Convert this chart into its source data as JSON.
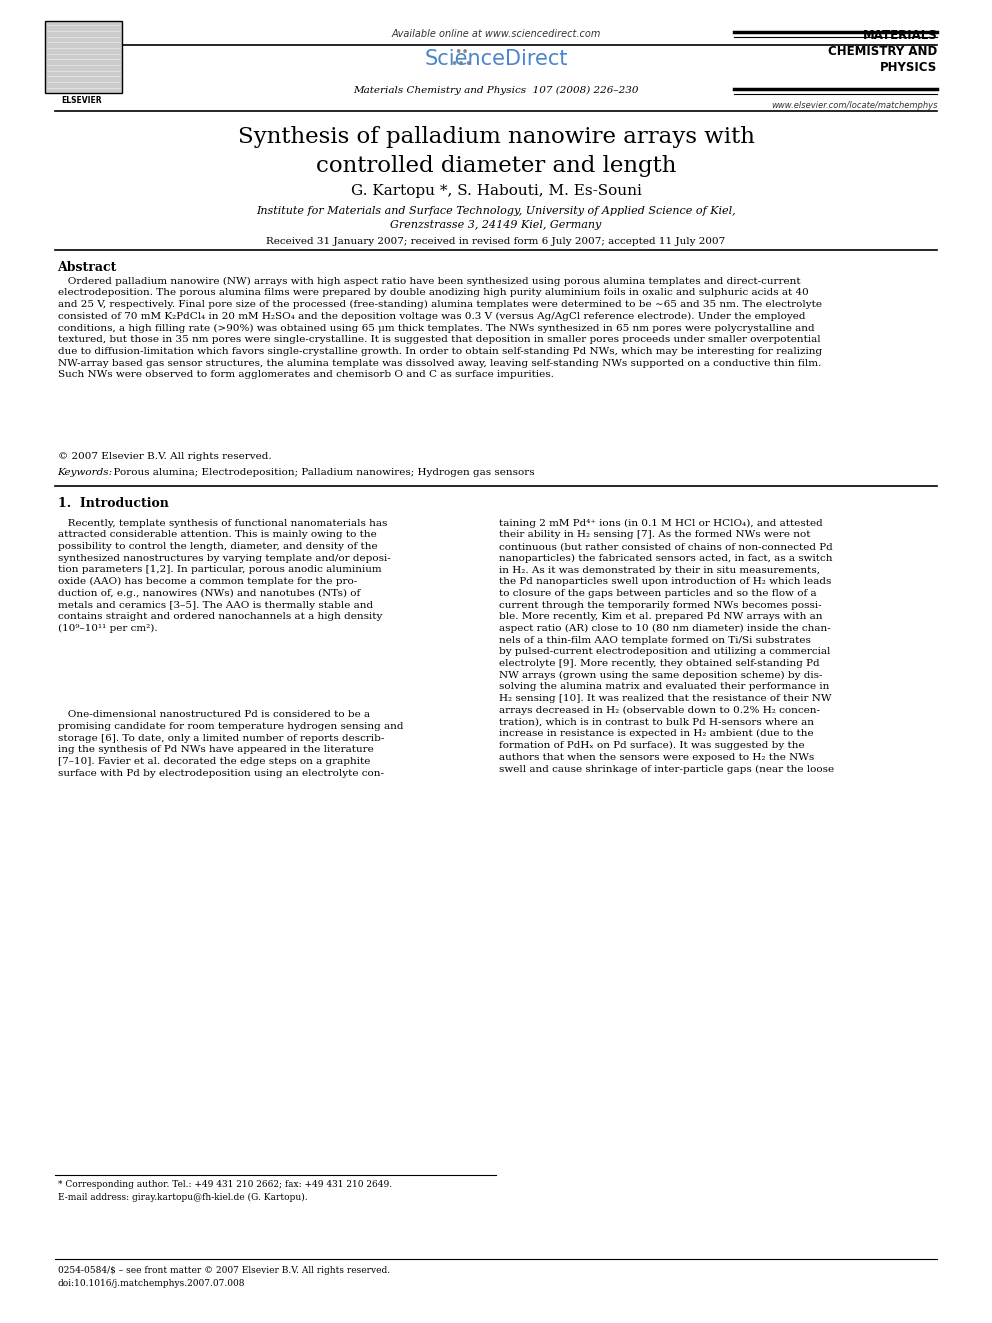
{
  "title": "Synthesis of palladium nanowire arrays with\ncontrolled diameter and length",
  "authors": "G. Kartopu *, S. Habouti, M. Es-Souni",
  "affiliation1": "Institute for Materials and Surface Technology, University of Applied Science of Kiel,",
  "affiliation2": "Grenzstrasse 3, 24149 Kiel, Germany",
  "received": "Received 31 January 2007; received in revised form 6 July 2007; accepted 11 July 2007",
  "journal_header": "Materials Chemistry and Physics  107 (2008) 226–230",
  "available_online": "Available online at www.sciencedirect.com",
  "sciencedirect": "ScienceDirect",
  "journal_name": "MATERIALS\nCHEMISTRY AND\nPHYSICS",
  "elsevier": "ELSEVIER",
  "journal_url": "www.elsevier.com/locate/matchemphys",
  "abstract_title": "Abstract",
  "abstract_text": "   Ordered palladium nanowire (NW) arrays with high aspect ratio have been synthesized using porous alumina templates and direct-current\nelectrodeposition. The porous alumina films were prepared by double anodizing high purity aluminium foils in oxalic and sulphuric acids at 40\nand 25 V, respectively. Final pore size of the processed (free-standing) alumina templates were determined to be ∼65 and 35 nm. The electrolyte\nconsisted of 70 mM K₂PdCl₄ in 20 mM H₂SO₄ and the deposition voltage was 0.3 V (versus Ag/AgCl reference electrode). Under the employed\nconditions, a high filling rate (>90%) was obtained using 65 μm thick templates. The NWs synthesized in 65 nm pores were polycrystalline and\ntextured, but those in 35 nm pores were single-crystalline. It is suggested that deposition in smaller pores proceeds under smaller overpotential\ndue to diffusion-limitation which favors single-crystalline growth. In order to obtain self-standing Pd NWs, which may be interesting for realizing\nNW-array based gas sensor structures, the alumina template was dissolved away, leaving self-standing NWs supported on a conductive thin film.\nSuch NWs were observed to form agglomerates and chemisorb O and C as surface impurities.",
  "copyright": "© 2007 Elsevier B.V. All rights reserved.",
  "keywords_label": "Keywords:",
  "keywords": "  Porous alumina; Electrodeposition; Palladium nanowires; Hydrogen gas sensors",
  "section1_title": "1.  Introduction",
  "intro_col1_para1": "   Recently, template synthesis of functional nanomaterials has\nattracted considerable attention. This is mainly owing to the\npossibility to control the length, diameter, and density of the\nsynthesized nanostructures by varying template and/or deposi-\ntion parameters [1,2]. In particular, porous anodic aluminium\noxide (AAO) has become a common template for the pro-\nduction of, e.g., nanowires (NWs) and nanotubes (NTs) of\nmetals and ceramics [3–5]. The AAO is thermally stable and\ncontains straight and ordered nanochannels at a high density\n(10⁹–10¹¹ per cm²).",
  "intro_col1_para2": "   One-dimensional nanostructured Pd is considered to be a\npromising candidate for room temperature hydrogen sensing and\nstorage [6]. To date, only a limited number of reports describ-\ning the synthesis of Pd NWs have appeared in the literature\n[7–10]. Favier et al. decorated the edge steps on a graphite\nsurface with Pd by electrodeposition using an electrolyte con-",
  "intro_col2": "taining 2 mM Pd⁴⁺ ions (in 0.1 M HCl or HClO₄), and attested\ntheir ability in H₂ sensing [7]. As the formed NWs were not\ncontinuous (but rather consisted of chains of non-connected Pd\nnanoparticles) the fabricated sensors acted, in fact, as a switch\nin H₂. As it was demonstrated by their in situ measurements,\nthe Pd nanoparticles swell upon introduction of H₂ which leads\nto closure of the gaps between particles and so the flow of a\ncurrent through the temporarily formed NWs becomes possi-\nble. More recently, Kim et al. prepared Pd NW arrays with an\naspect ratio (AR) close to 10 (80 nm diameter) inside the chan-\nnels of a thin-film AAO template formed on Ti/Si substrates\nby pulsed-current electrodeposition and utilizing a commercial\nelectrolyte [9]. More recently, they obtained self-standing Pd\nNW arrays (grown using the same deposition scheme) by dis-\nsolving the alumina matrix and evaluated their performance in\nH₂ sensing [10]. It was realized that the resistance of their NW\narrays decreased in H₂ (observable down to 0.2% H₂ concen-\ntration), which is in contrast to bulk Pd H-sensors where an\nincrease in resistance is expected in H₂ ambient (due to the\nformation of PdHₓ on Pd surface). It was suggested by the\nauthors that when the sensors were exposed to H₂ the NWs\nswell and cause shrinkage of inter-particle gaps (near the loose",
  "footnote1": "* Corresponding author. Tel.: +49 431 210 2662; fax: +49 431 210 2649.",
  "footnote2": "E-mail address: giray.kartopu@fh-kiel.de (G. Kartopu).",
  "footnote3": "0254-0584/$ – see front matter © 2007 Elsevier B.V. All rights reserved.",
  "footnote4": "doi:10.1016/j.matchemphys.2007.07.008",
  "background_color": "#ffffff",
  "text_color": "#000000"
}
